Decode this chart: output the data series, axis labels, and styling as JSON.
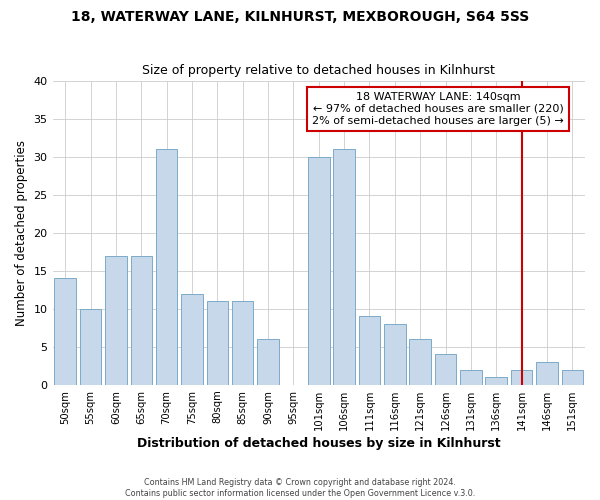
{
  "title": "18, WATERWAY LANE, KILNHURST, MEXBOROUGH, S64 5SS",
  "subtitle": "Size of property relative to detached houses in Kilnhurst",
  "xlabel": "Distribution of detached houses by size in Kilnhurst",
  "ylabel": "Number of detached properties",
  "footer_line1": "Contains HM Land Registry data © Crown copyright and database right 2024.",
  "footer_line2": "Contains public sector information licensed under the Open Government Licence v.3.0.",
  "bar_color": "#c8d8eb",
  "bar_edge_color": "#7baac8",
  "categories": [
    "50sqm",
    "55sqm",
    "60sqm",
    "65sqm",
    "70sqm",
    "75sqm",
    "80sqm",
    "85sqm",
    "90sqm",
    "95sqm",
    "101sqm",
    "106sqm",
    "111sqm",
    "116sqm",
    "121sqm",
    "126sqm",
    "131sqm",
    "136sqm",
    "141sqm",
    "146sqm",
    "151sqm"
  ],
  "values": [
    14,
    10,
    17,
    17,
    31,
    12,
    11,
    11,
    6,
    0,
    30,
    31,
    9,
    8,
    6,
    4,
    2,
    1,
    2,
    3,
    2
  ],
  "ylim": [
    0,
    40
  ],
  "yticks": [
    0,
    5,
    10,
    15,
    20,
    25,
    30,
    35,
    40
  ],
  "property_line_idx": 18,
  "property_line_color": "#cc0000",
  "annotation_title": "18 WATERWAY LANE: 140sqm",
  "annotation_line1": "← 97% of detached houses are smaller (220)",
  "annotation_line2": "2% of semi-detached houses are larger (5) →",
  "annotation_box_color": "#ffffff",
  "annotation_box_edge": "#cc0000",
  "grid_color": "#cccccc",
  "background_color": "#ffffff"
}
